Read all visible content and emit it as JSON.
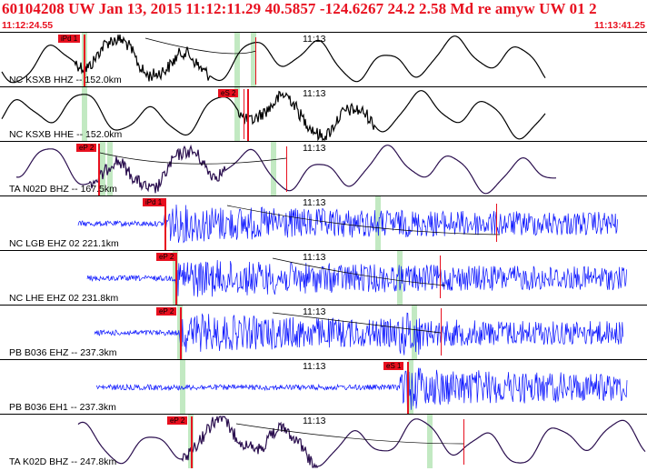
{
  "header": {
    "title": "60104208 UW Jan 13, 2015 11:12:11.29    40.5857 -124.6267 24.2 2.58 Md re amyw UW 01    2",
    "time_start": "11:12:24.55",
    "time_end": "11:13:41.25"
  },
  "minute_label": "11:13",
  "colors": {
    "header_text": "#e8101f",
    "pick": "#e8101f",
    "band": "#bfe8bf",
    "trace_black": "#000000",
    "trace_purple": "#2b0f4f",
    "trace_blue": "#0a14ff"
  },
  "panels": [
    {
      "label": "NC KSXB HHZ -- 152.0km",
      "pick": "iPd 1",
      "trace_type": "low-frequency",
      "color": "trace_black"
    },
    {
      "label": "NC KSXB HHE -- 152.0km",
      "pick": "eS 2",
      "trace_type": "low-frequency",
      "color": "trace_black"
    },
    {
      "label": "TA N02D BHZ -- 167.5km",
      "pick": "eP 2",
      "trace_type": "low-frequency",
      "color": "trace_purple"
    },
    {
      "label": "NC LGB EHZ 02 221.1km",
      "pick": "iPd 1",
      "trace_type": "high-frequency",
      "color": "trace_blue"
    },
    {
      "label": "NC LHE EHZ 02 231.8km",
      "pick": "eP 2",
      "trace_type": "high-frequency",
      "color": "trace_blue"
    },
    {
      "label": "PB B036 EHZ -- 237.3km",
      "pick": "eP 2",
      "trace_type": "high-frequency",
      "color": "trace_blue"
    },
    {
      "label": "PB B036 EH1 -- 237.3km",
      "pick": "eS 1",
      "trace_type": "high-frequency",
      "color": "trace_blue"
    },
    {
      "label": "TA K02D BHZ -- 247.8km",
      "pick": "eP 2",
      "trace_type": "low-frequency",
      "color": "trace_purple"
    }
  ]
}
